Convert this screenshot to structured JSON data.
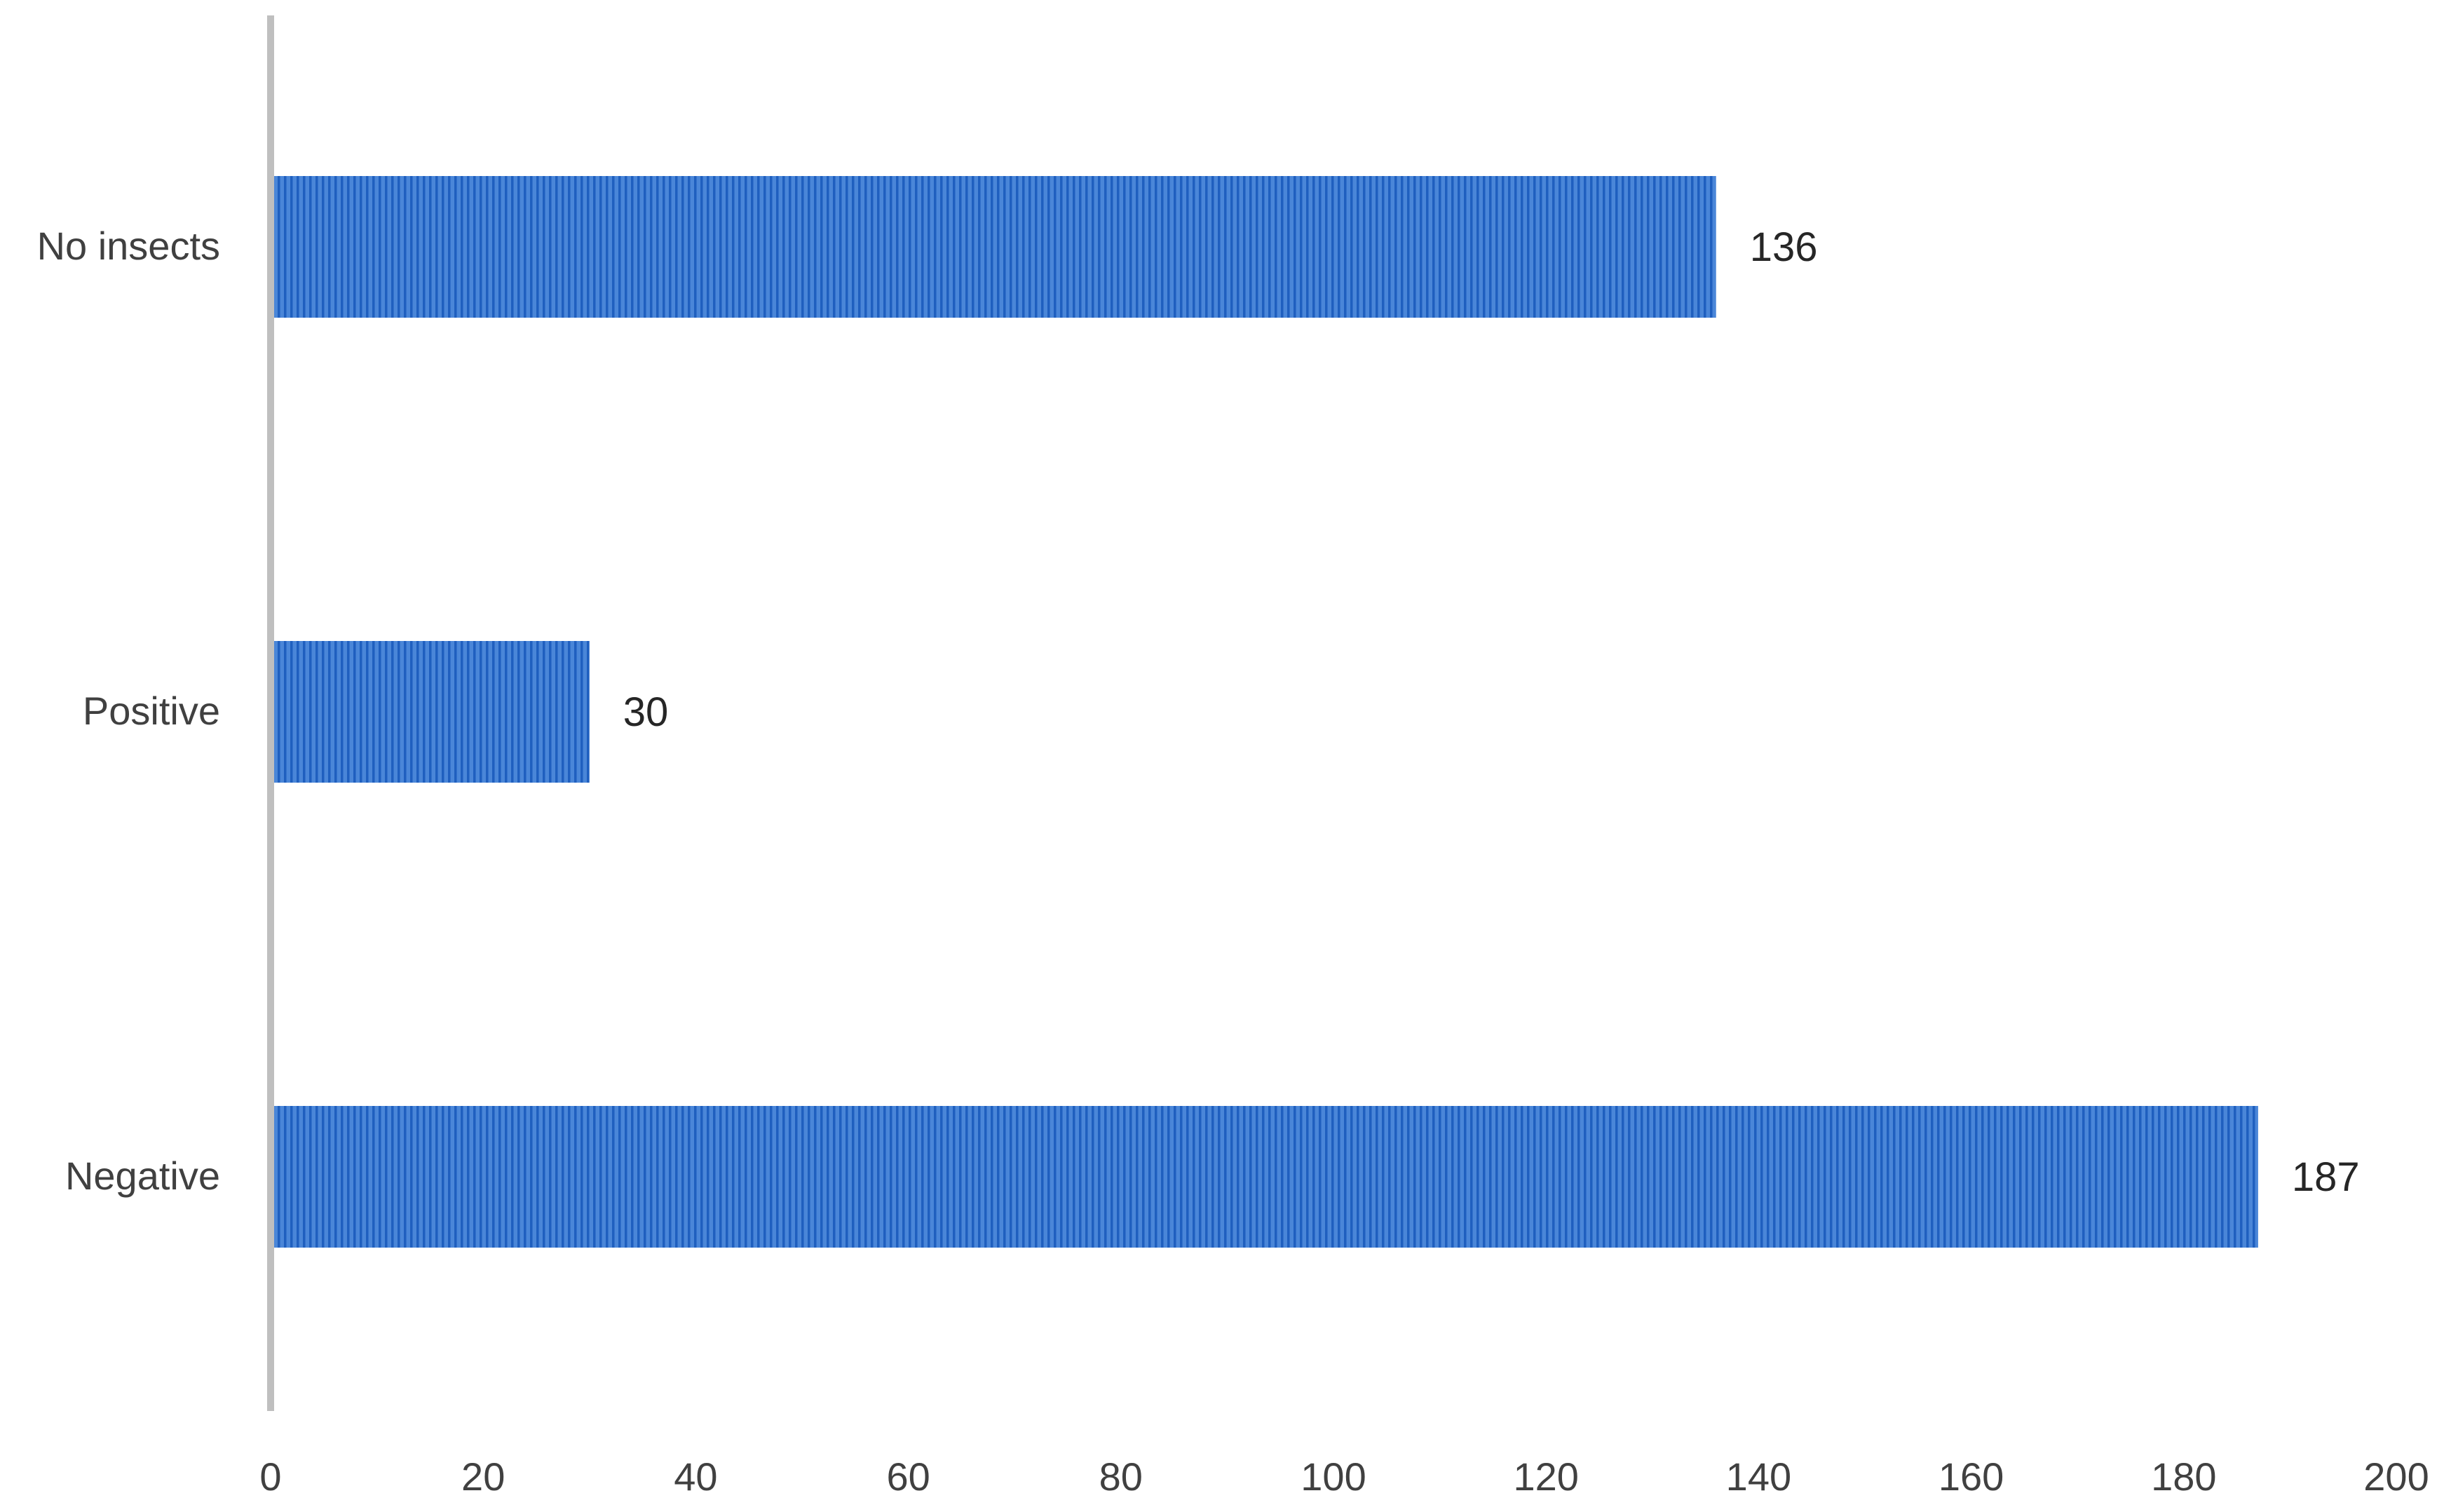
{
  "chart_data": {
    "type": "bar",
    "orientation": "horizontal",
    "categories": [
      "No insects",
      "Positive",
      "Negative"
    ],
    "values": [
      136,
      30,
      187
    ],
    "data_labels": [
      "136",
      "30",
      "187"
    ],
    "title": "",
    "xlabel": "",
    "ylabel": "",
    "xlim": [
      0,
      200
    ],
    "x_ticks": [
      0,
      20,
      40,
      60,
      80,
      100,
      120,
      140,
      160,
      180,
      200
    ],
    "x_tick_labels": [
      "0",
      "20",
      "40",
      "60",
      "80",
      "100",
      "120",
      "140",
      "160",
      "180",
      "200"
    ],
    "grid": false,
    "legend": "none",
    "colors": {
      "bar": "#4a86d8",
      "bar_stripe": "#1f5fbf",
      "axis": "#bfbfbf",
      "text": "#404040"
    }
  }
}
